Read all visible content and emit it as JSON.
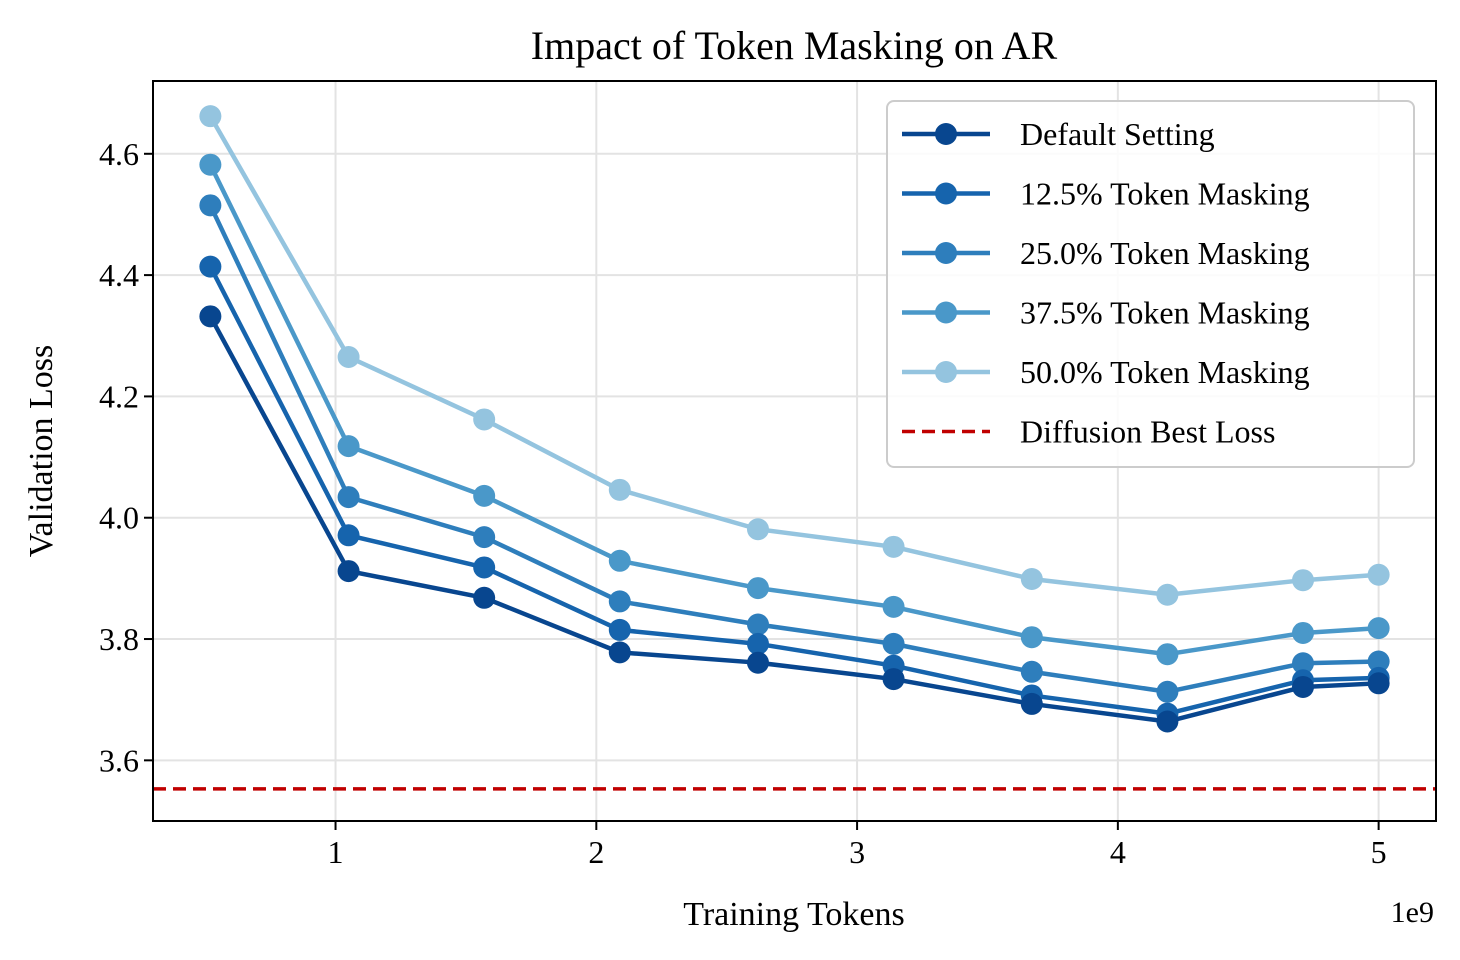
{
  "chart_data": {
    "type": "line",
    "title": "Impact of Token Masking on AR",
    "xlabel": "Training Tokens",
    "ylabel": "Validation Loss",
    "x_offset_label": "1e9",
    "x_scale": 1000000000,
    "xlim": [
      0.3,
      5.22
    ],
    "ylim": [
      3.5,
      4.72
    ],
    "x_ticks": [
      1,
      2,
      3,
      4,
      5
    ],
    "x_tick_labels": [
      "1",
      "2",
      "3",
      "4",
      "5"
    ],
    "y_ticks": [
      3.6,
      3.8,
      4.0,
      4.2,
      4.4,
      4.6
    ],
    "y_tick_labels": [
      "3.6",
      "3.8",
      "4.0",
      "4.2",
      "4.4",
      "4.6"
    ],
    "grid": true,
    "legend_position": "top-right",
    "x": [
      0.52,
      1.05,
      1.57,
      2.09,
      2.62,
      3.14,
      3.67,
      4.19,
      4.71,
      5.0
    ],
    "series": [
      {
        "name": "Default Setting",
        "color": "#08468f",
        "values": [
          4.332,
          3.912,
          3.868,
          3.778,
          3.761,
          3.734,
          3.693,
          3.664,
          3.721,
          3.727
        ]
      },
      {
        "name": "12.5% Token Masking",
        "color": "#1664ad",
        "values": [
          4.414,
          3.971,
          3.918,
          3.815,
          3.792,
          3.756,
          3.707,
          3.677,
          3.732,
          3.736
        ]
      },
      {
        "name": "25.0% Token Masking",
        "color": "#2e7ebc",
        "values": [
          4.515,
          4.034,
          3.968,
          3.862,
          3.824,
          3.792,
          3.746,
          3.713,
          3.76,
          3.763
        ]
      },
      {
        "name": "37.5% Token Masking",
        "color": "#4a98c9",
        "values": [
          4.582,
          4.118,
          4.036,
          3.929,
          3.884,
          3.853,
          3.803,
          3.775,
          3.81,
          3.818
        ]
      },
      {
        "name": "50.0% Token Masking",
        "color": "#94c4df",
        "values": [
          4.662,
          4.265,
          4.162,
          4.046,
          3.981,
          3.952,
          3.899,
          3.873,
          3.897,
          3.906
        ]
      }
    ],
    "reference_line": {
      "name": "Diffusion Best Loss",
      "color": "#c00000",
      "y": 3.553,
      "style": "dashed"
    }
  }
}
